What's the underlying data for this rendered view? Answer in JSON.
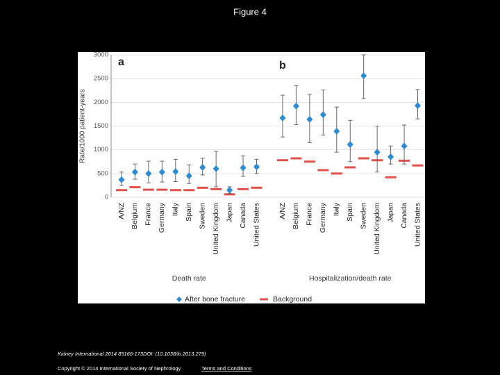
{
  "title": "Figure 4",
  "footer": {
    "citation": "Kidney International 2014 85166-173DOI: (10.1038/ki.2013.279)",
    "copyright": "Copyright © 2014 International Society of Nephrology",
    "link": "Terms and Conditions"
  },
  "chart_data": {
    "type": "errorbar",
    "ylabel": "Rate/1000 patient-years",
    "ylim": [
      0,
      3000
    ],
    "yticks": [
      0,
      500,
      1000,
      1500,
      2000,
      2500,
      3000
    ],
    "grid": true,
    "legend": [
      {
        "name": "After bone fracture",
        "color": "#2f8bd0"
      },
      {
        "name": "Background",
        "color": "#e0514b"
      }
    ],
    "panels": [
      {
        "label": "a",
        "xlabel": "Death rate",
        "categories": [
          "A/NZ",
          "Belgium",
          "France",
          "Germany",
          "Italy",
          "Spain",
          "Sweden",
          "United Kingdom",
          "Japan",
          "Canada",
          "United States"
        ],
        "fracture": {
          "values": [
            370,
            530,
            500,
            530,
            540,
            450,
            630,
            600,
            150,
            620,
            640
          ],
          "lower": [
            250,
            380,
            300,
            320,
            330,
            290,
            470,
            220,
            80,
            440,
            500
          ],
          "upper": [
            530,
            700,
            760,
            760,
            800,
            680,
            820,
            970,
            220,
            870,
            800
          ]
        },
        "background": {
          "values": [
            150,
            210,
            160,
            160,
            150,
            150,
            200,
            170,
            60,
            170,
            200
          ]
        }
      },
      {
        "label": "b",
        "xlabel": "Hospitalization/death rate",
        "categories": [
          "A/NZ",
          "Belgium",
          "France",
          "Germany",
          "Italy",
          "Spain",
          "Sweden",
          "United Kingdom",
          "Japan",
          "Canada",
          "United States"
        ],
        "fracture": {
          "values": [
            1670,
            1920,
            1640,
            1740,
            1390,
            1110,
            2560,
            950,
            850,
            1080,
            1930
          ],
          "lower": [
            1270,
            1530,
            1150,
            1310,
            950,
            750,
            2080,
            530,
            700,
            700,
            1650
          ],
          "upper": [
            2150,
            2350,
            2170,
            2260,
            1900,
            1620,
            3000,
            1500,
            1080,
            1520,
            2270
          ]
        },
        "background": {
          "values": [
            780,
            820,
            750,
            570,
            500,
            630,
            820,
            780,
            420,
            770,
            670
          ]
        }
      }
    ]
  }
}
